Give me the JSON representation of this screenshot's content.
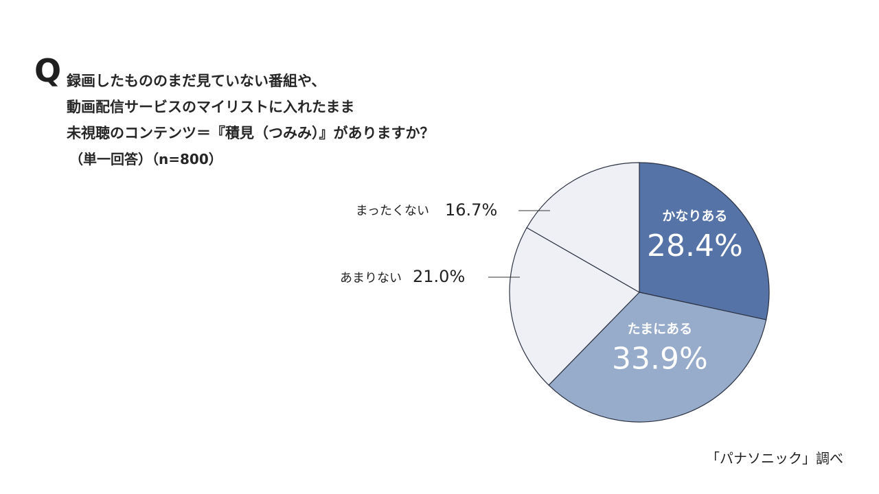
{
  "question": {
    "mark": "Q",
    "lines": [
      "録画したもののまだ見ていない番組や、",
      "動画配信サービスのマイリストに入れたまま",
      "未視聴のコンテンツ＝『積見（つみみ）』がありますか？"
    ],
    "sub": "（単一回答）（n=800）"
  },
  "source": "「パナソニック」調べ",
  "chart_data": {
    "type": "pie",
    "start": "12 o'clock",
    "direction": "clockwise",
    "slices": [
      {
        "label": "かなりある",
        "value": 28.4,
        "display": "28.4%",
        "color": "#5673a8",
        "label_position": "inside",
        "label_color": "#ffffff"
      },
      {
        "label": "たまにある",
        "value": 33.9,
        "display": "33.9%",
        "color": "#97abca",
        "label_position": "inside",
        "label_color": "#ffffff"
      },
      {
        "label": "あまりない",
        "value": 21.0,
        "display": "21.0%",
        "color": "#eef0f5",
        "label_position": "outside",
        "label_color": "#222222"
      },
      {
        "label": "まったくない",
        "value": 16.7,
        "display": "16.7%",
        "color": "#eef0f5",
        "label_position": "outside",
        "label_color": "#222222"
      }
    ],
    "outline_color": "#2a3140"
  }
}
